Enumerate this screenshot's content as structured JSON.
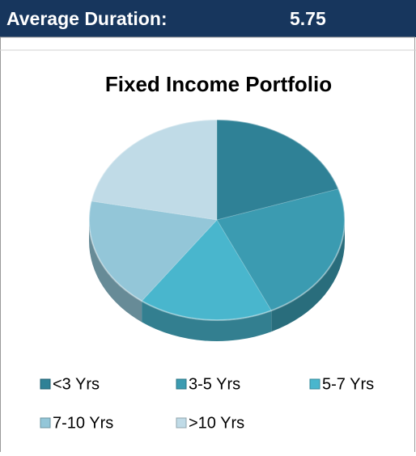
{
  "header": {
    "label": "Average Duration:",
    "value": "5.75"
  },
  "chart_data": {
    "type": "pie",
    "title": "Fixed Income Portfolio",
    "categories": [
      "<3 Yrs",
      "3-5 Yrs",
      "5-7 Yrs",
      "7-10 Yrs",
      ">10 Yrs"
    ],
    "values": [
      20,
      23,
      17,
      18,
      22
    ],
    "colors": [
      "#2f8196",
      "#3b9bb1",
      "#49b6cd",
      "#93c6d8",
      "#c0dbe7"
    ],
    "legend": "bottom"
  }
}
